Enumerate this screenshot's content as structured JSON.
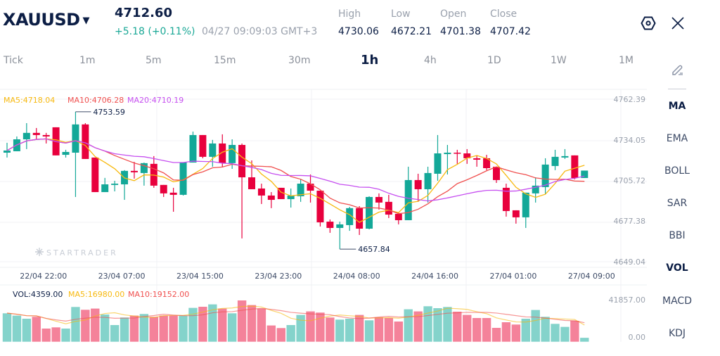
{
  "header": {
    "symbol": "XAUUSD",
    "price": "4712.60",
    "change": "+5.18 (+0.11%)",
    "timestamp": "04/27 09:09:03 GMT+3",
    "stats": [
      {
        "label": "High",
        "value": "4730.06"
      },
      {
        "label": "Low",
        "value": "4672.21"
      },
      {
        "label": "Open",
        "value": "4701.38"
      },
      {
        "label": "Close",
        "value": "4707.42"
      }
    ]
  },
  "timeframes": [
    "Tick",
    "1m",
    "5m",
    "15m",
    "30m",
    "1h",
    "4h",
    "1D",
    "1W",
    "1M"
  ],
  "active_timeframe": "1h",
  "indicators": [
    "MA",
    "EMA",
    "BOLL",
    "SAR",
    "BBI",
    "VOL",
    "MACD",
    "KDJ"
  ],
  "active_indicators": [
    "MA",
    "VOL"
  ],
  "watermark": "STARTRADER",
  "colors": {
    "up": "#13a898",
    "down": "#e8003d",
    "vol_up": "#84d3cb",
    "vol_down": "#f4829a",
    "ma5": "#f7b90f",
    "ma10": "#f0504f",
    "ma20": "#c64ff0",
    "text": "#0c1e45"
  },
  "chart_data": {
    "type": "candlestick",
    "legend": {
      "ma5": "MA5:4718.04",
      "ma10": "MA10:4706.28",
      "ma20": "MA20:4710.19"
    },
    "price_ticks": [
      "4762.39",
      "4734.05",
      "4705.72",
      "4677.38",
      "4649.04"
    ],
    "ylim": [
      4649.04,
      4762.39
    ],
    "x_ticks": [
      "22/04 22:00",
      "23/04 07:00",
      "23/04 15:00",
      "23/04 23:00",
      "24/04 08:00",
      "24/04 16:00",
      "27/04 01:00",
      "27/04 09:00"
    ],
    "x_tick_index": [
      3,
      11,
      19,
      27,
      35,
      43,
      51,
      59
    ],
    "max_label": "4753.59",
    "max_index": 7,
    "min_label": "4657.84",
    "min_index": 34,
    "candles": [
      [
        4725.1,
        4732.0,
        4721.7,
        4726.6
      ],
      [
        4726.1,
        4736.4,
        4726.1,
        4734.4
      ],
      [
        4734.4,
        4745.7,
        4727.6,
        4738.9
      ],
      [
        4738.9,
        4742.3,
        4734.0,
        4737.4
      ],
      [
        4737.4,
        4738.9,
        4731.5,
        4736.4
      ],
      [
        4742.8,
        4742.8,
        4723.2,
        4723.2
      ],
      [
        4723.6,
        4727.1,
        4721.7,
        4725.6
      ],
      [
        4725.1,
        4753.59,
        4694.2,
        4744.8
      ],
      [
        4744.8,
        4745.7,
        4720.7,
        4720.7
      ],
      [
        4721.7,
        4721.7,
        4697.6,
        4697.6
      ],
      [
        4697.6,
        4707.5,
        4697.6,
        4703.0
      ],
      [
        4702.6,
        4705.5,
        4698.1,
        4703.5
      ],
      [
        4703.0,
        4712.9,
        4692.2,
        4712.4
      ],
      [
        4712.4,
        4718.7,
        4707.0,
        4711.4
      ],
      [
        4710.9,
        4718.2,
        4702.1,
        4717.8
      ],
      [
        4717.3,
        4722.7,
        4700.6,
        4702.1
      ],
      [
        4702.6,
        4702.6,
        4694.2,
        4696.7
      ],
      [
        4697.2,
        4700.6,
        4683.9,
        4695.7
      ],
      [
        4695.7,
        4718.2,
        4695.2,
        4718.2
      ],
      [
        4718.2,
        4739.8,
        4718.2,
        4737.4
      ],
      [
        4737.4,
        4737.4,
        4721.2,
        4722.2
      ],
      [
        4722.2,
        4734.0,
        4715.3,
        4731.5
      ],
      [
        4731.5,
        4737.9,
        4714.8,
        4717.8
      ],
      [
        4717.8,
        4734.4,
        4713.8,
        4730.5
      ],
      [
        4730.5,
        4731.5,
        4665.3,
        4707.9
      ],
      [
        4707.9,
        4719.7,
        4699.6,
        4699.6
      ],
      [
        4700.1,
        4703.5,
        4689.3,
        4695.2
      ],
      [
        4695.2,
        4697.6,
        4686.4,
        4692.2
      ],
      [
        4700.6,
        4700.6,
        4692.7,
        4692.7
      ],
      [
        4692.7,
        4700.1,
        4686.8,
        4695.2
      ],
      [
        4694.7,
        4706.5,
        4690.8,
        4703.5
      ],
      [
        4703.5,
        4709.9,
        4690.3,
        4698.6
      ],
      [
        4698.6,
        4698.6,
        4673.6,
        4676.5
      ],
      [
        4677.0,
        4678.5,
        4669.2,
        4672.6
      ],
      [
        4672.6,
        4677.0,
        4657.84,
        4675.1
      ],
      [
        4674.6,
        4687.3,
        4670.6,
        4686.4
      ],
      [
        4686.4,
        4687.8,
        4667.7,
        4672.1
      ],
      [
        4672.1,
        4694.7,
        4671.6,
        4694.2
      ],
      [
        4694.2,
        4696.7,
        4685.4,
        4690.3
      ],
      [
        4690.8,
        4695.7,
        4679.5,
        4681.9
      ],
      [
        4682.4,
        4683.4,
        4675.1,
        4678.0
      ],
      [
        4678.0,
        4715.3,
        4678.0,
        4706.0
      ],
      [
        4706.0,
        4710.4,
        4690.8,
        4699.6
      ],
      [
        4699.6,
        4715.3,
        4690.3,
        4710.9
      ],
      [
        4710.4,
        4737.4,
        4705.5,
        4724.6
      ],
      [
        4724.1,
        4730.5,
        4709.9,
        4725.1
      ],
      [
        4725.1,
        4727.1,
        4717.3,
        4724.6
      ],
      [
        4724.6,
        4727.6,
        4717.3,
        4721.2
      ],
      [
        4721.2,
        4723.2,
        4715.3,
        4720.2
      ],
      [
        4721.2,
        4723.6,
        4712.9,
        4714.3
      ],
      [
        4715.3,
        4715.3,
        4704.0,
        4706.0
      ],
      [
        4700.6,
        4703.5,
        4680.5,
        4684.4
      ],
      [
        4684.9,
        4684.9,
        4675.6,
        4680.0
      ],
      [
        4680.0,
        4697.2,
        4672.6,
        4697.2
      ],
      [
        4696.7,
        4707.9,
        4690.3,
        4702.1
      ],
      [
        4701.1,
        4721.2,
        4696.2,
        4716.8
      ],
      [
        4715.8,
        4727.1,
        4712.9,
        4722.2
      ],
      [
        4721.7,
        4727.6,
        4720.7,
        4722.7
      ],
      [
        4723.2,
        4723.2,
        4706.5,
        4707.42
      ],
      [
        4707.42,
        4712.6,
        4707.42,
        4712.6
      ]
    ],
    "volume": {
      "legend": {
        "vol": "VOL:4359.00",
        "ma5": "MA5:16980.00",
        "ma10": "MA10:19152.00"
      },
      "ticks": [
        "41857.00",
        "0.00"
      ],
      "ylim": [
        0,
        41857
      ],
      "values": [
        28940,
        26612,
        23506,
        25412,
        13624,
        14824,
        13624,
        35295,
        32471,
        33671,
        27742,
        17153,
        24706,
        26612,
        28236,
        25412,
        26612,
        26612,
        26612,
        34377,
        35507,
        37907,
        33671,
        28942,
        41857,
        37201,
        33671,
        16730,
        14118,
        17153,
        27318,
        30848,
        29648,
        24706,
        22589,
        23506,
        27318,
        21883,
        24918,
        24212,
        20683,
        32966,
        30848,
        36001,
        34095,
        35295,
        30565,
        27318,
        24212,
        24212,
        14330,
        19977,
        17648,
        23506,
        32260,
        25412,
        18353,
        15318,
        21389,
        4359
      ]
    }
  }
}
